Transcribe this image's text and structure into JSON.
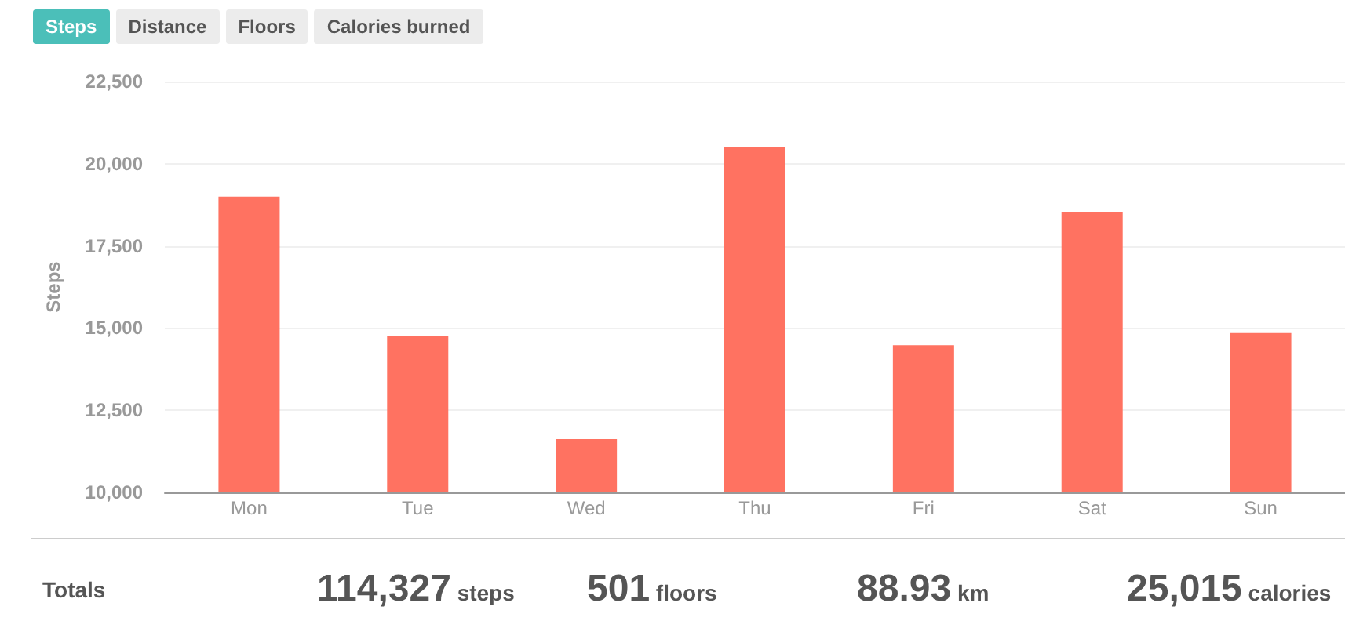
{
  "chart_data": {
    "type": "bar",
    "ylabel": "Steps",
    "categories": [
      "Mon",
      "Tue",
      "Wed",
      "Thu",
      "Fri",
      "Sat",
      "Sun"
    ],
    "values": [
      19000,
      14770,
      11620,
      20500,
      14480,
      18540,
      14850
    ],
    "color": "#ff7261",
    "ylim": [
      10000,
      22500
    ],
    "yticks": [
      {
        "value": 10000,
        "label": "10,000"
      },
      {
        "value": 12500,
        "label": "12,500"
      },
      {
        "value": 15000,
        "label": "15,000"
      },
      {
        "value": 17500,
        "label": "17,500"
      },
      {
        "value": 20000,
        "label": "20,000"
      },
      {
        "value": 22500,
        "label": "22,500"
      }
    ],
    "grid": "y",
    "annotations": [
      "Steps",
      "Distance",
      "Floors",
      "Calories burned",
      "Totals",
      "114,327 steps",
      "501 floors",
      "88.93 km",
      "25,015 calories"
    ]
  }
}
